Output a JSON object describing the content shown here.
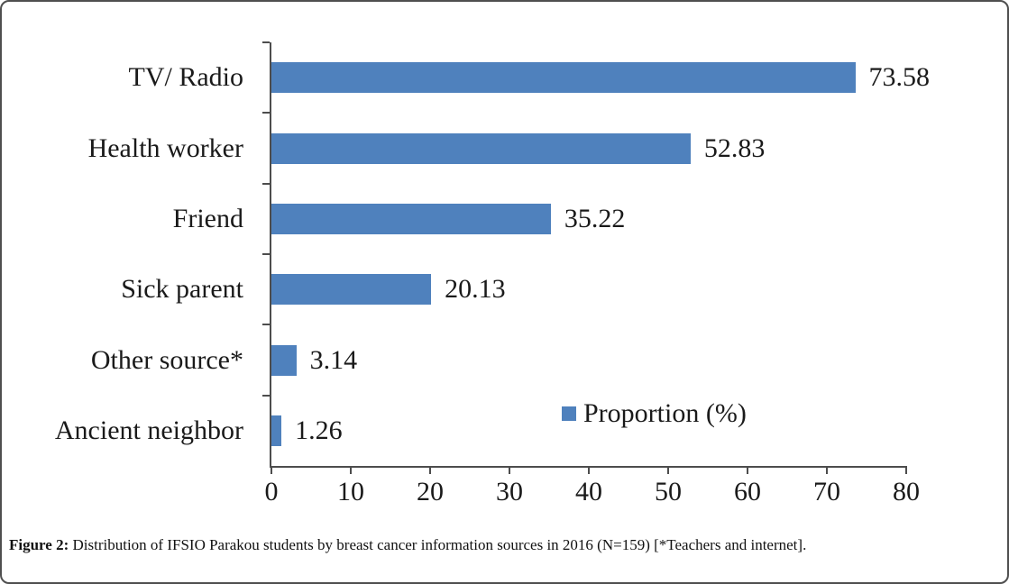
{
  "chart_data": {
    "type": "bar",
    "orientation": "horizontal",
    "categories": [
      "TV/ Radio",
      "Health worker",
      "Friend",
      "Sick parent",
      "Other source*",
      "Ancient neighbor"
    ],
    "values": [
      73.58,
      52.83,
      35.22,
      20.13,
      3.14,
      1.26
    ],
    "value_labels": [
      "73.58",
      "52.83",
      "35.22",
      "20.13",
      "3.14",
      "1.26"
    ],
    "series_name": "Proportion (%)",
    "legend": "Proportion (%)",
    "legend_position": "inside-bottom-right",
    "xlim": [
      0,
      80
    ],
    "x_ticks": [
      0,
      10,
      20,
      30,
      40,
      50,
      60,
      70,
      80
    ],
    "grid": false,
    "bar_color": "#4f81bd",
    "axis_color": "#4d4d4d",
    "text_color": "#1a1a1a"
  },
  "caption": {
    "label": "Figure 2:",
    "text": "Distribution of IFSIO Parakou students by breast cancer information sources in 2016 (N=159) [*Teachers and internet]."
  }
}
